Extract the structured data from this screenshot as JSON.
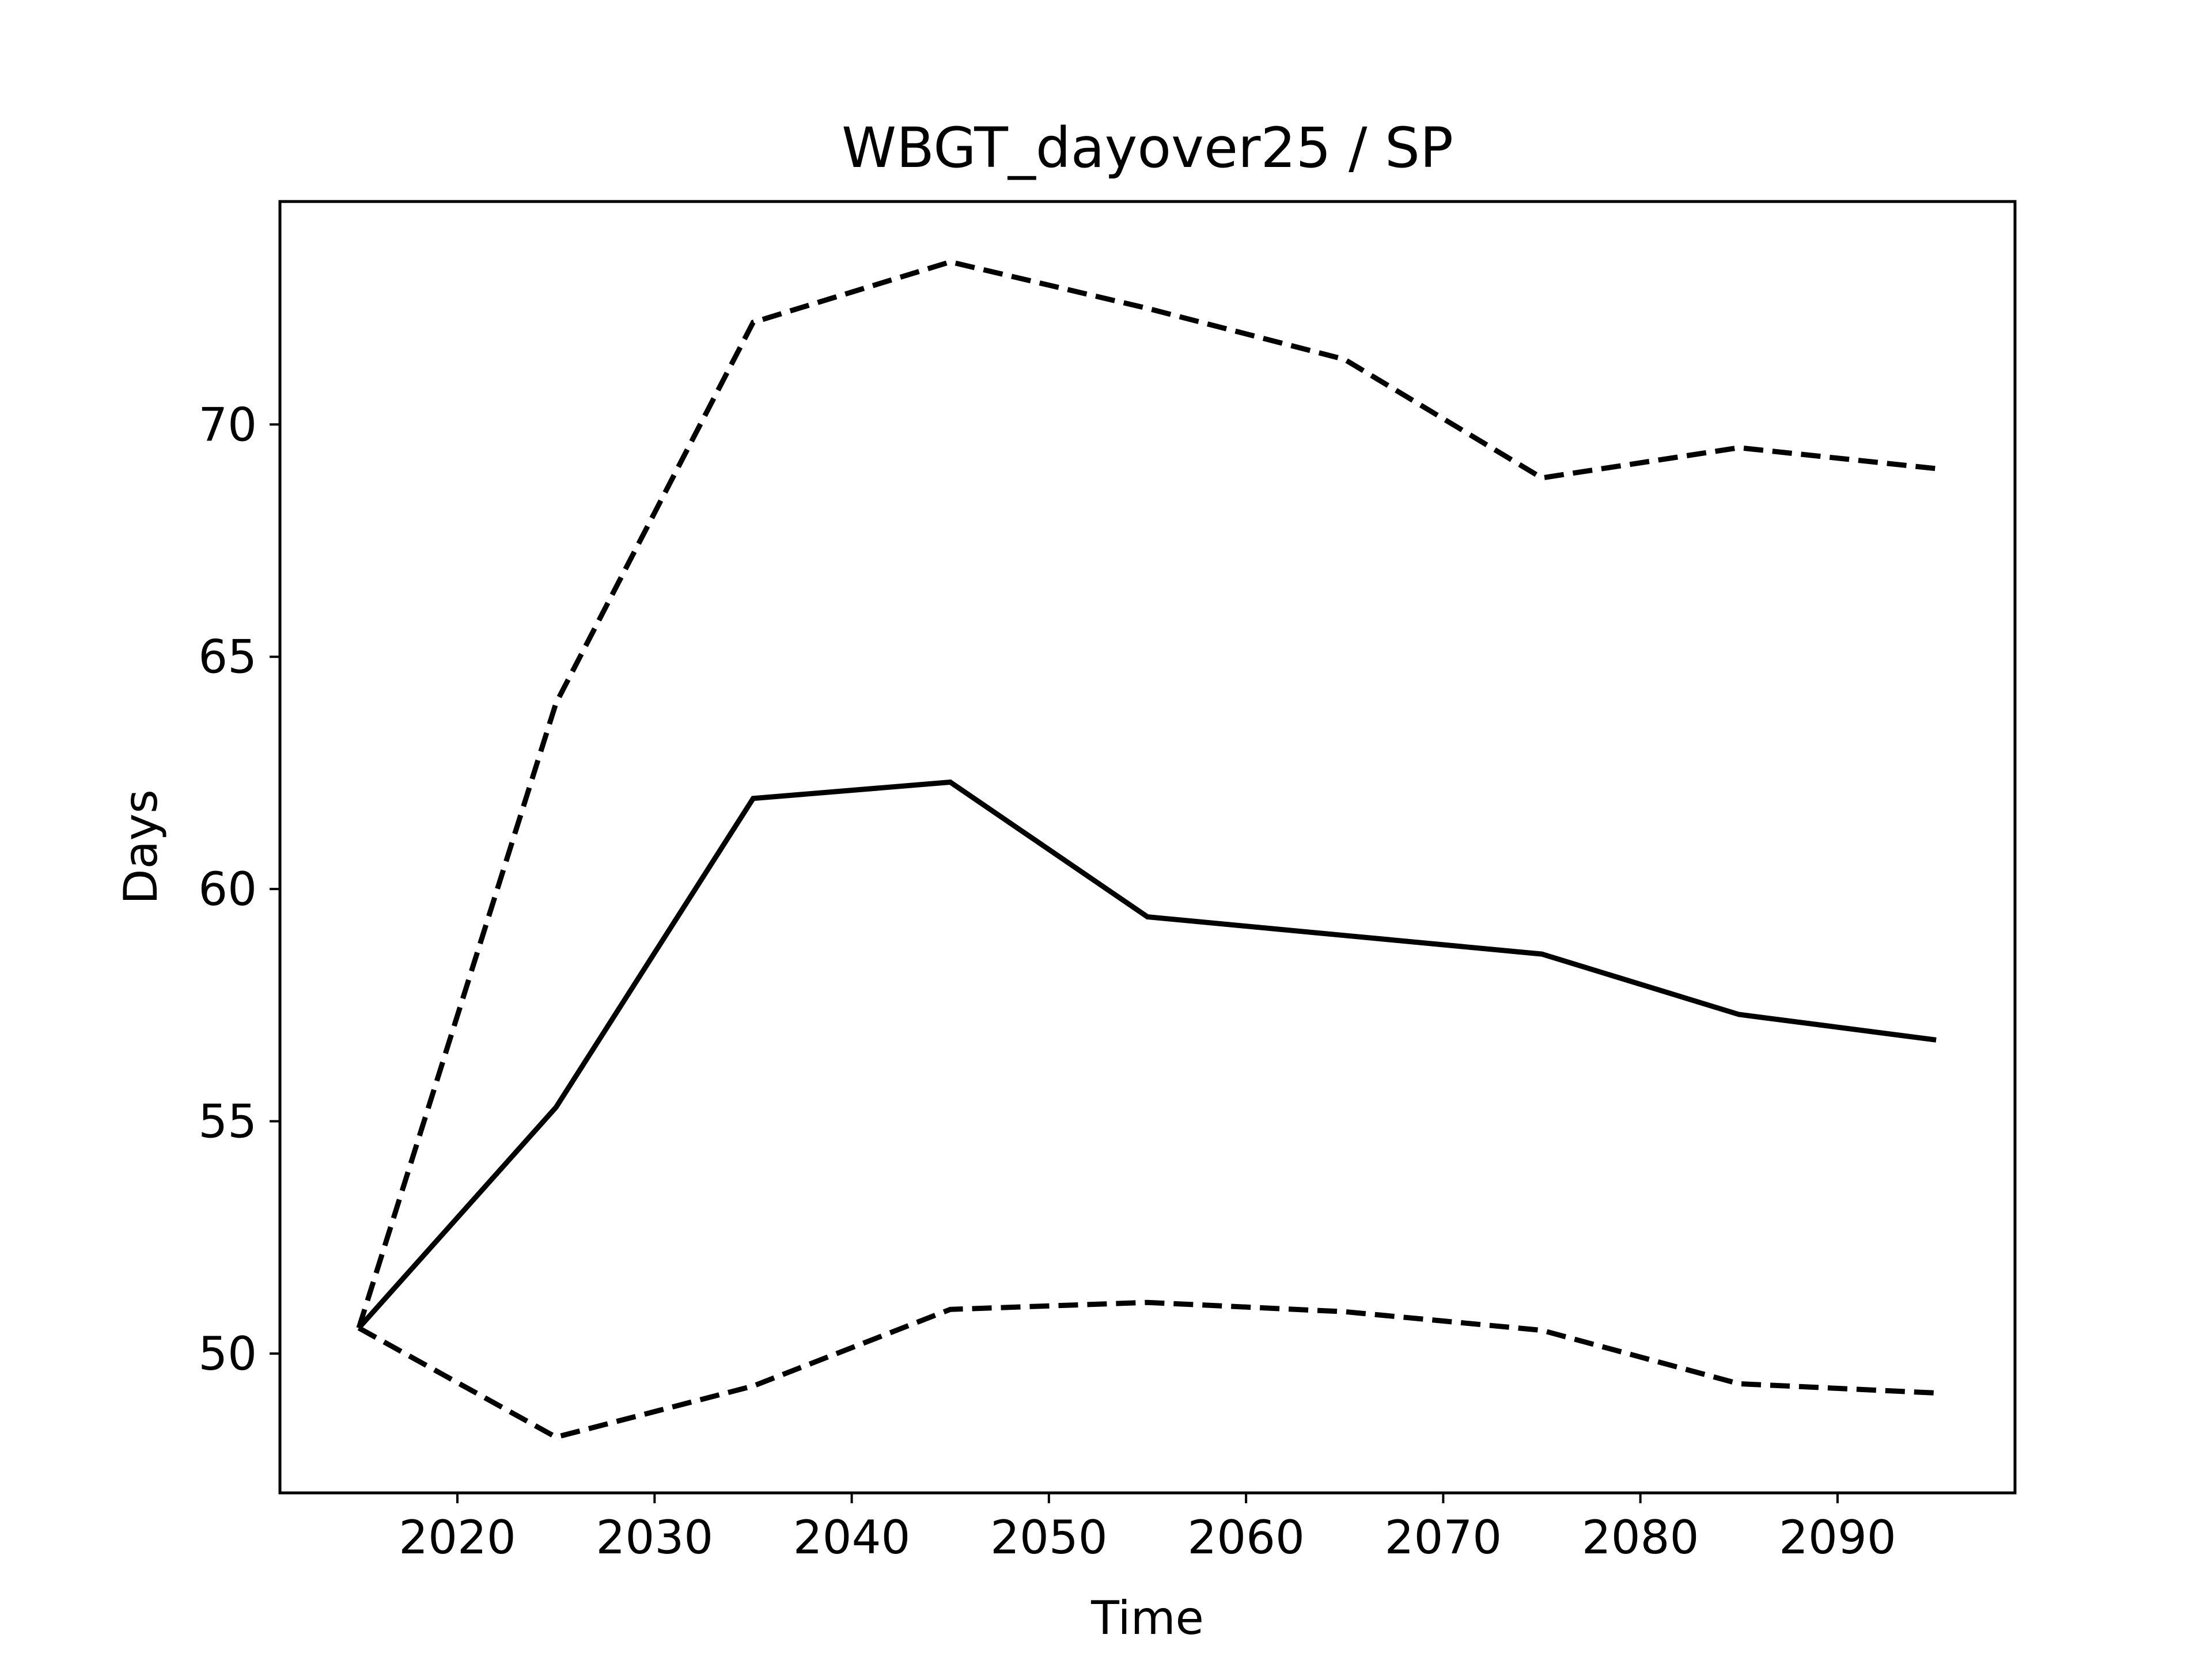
{
  "chart_data": {
    "type": "line",
    "title": "WBGT_dayover25 / SP",
    "xlabel": "Time",
    "ylabel": "Days",
    "xlim": [
      2011,
      2099
    ],
    "ylim": [
      47.0,
      74.8
    ],
    "xticks": [
      2020,
      2030,
      2040,
      2050,
      2060,
      2070,
      2080,
      2090
    ],
    "yticks": [
      50,
      55,
      60,
      65,
      70
    ],
    "grid": false,
    "legend": "none",
    "x": [
      2015,
      2025,
      2035,
      2045,
      2055,
      2065,
      2075,
      2085,
      2095
    ],
    "series": [
      {
        "style": "dashed",
        "color": "#000000",
        "values": [
          50.55,
          64.0,
          72.2,
          73.5,
          72.5,
          71.4,
          68.85,
          69.5,
          69.05
        ]
      },
      {
        "style": "solid",
        "color": "#000000",
        "values": [
          50.55,
          55.3,
          61.95,
          62.3,
          59.4,
          59.0,
          58.6,
          57.3,
          56.75
        ]
      },
      {
        "style": "dashed",
        "color": "#000000",
        "values": [
          50.55,
          48.2,
          49.3,
          50.95,
          51.1,
          50.9,
          50.5,
          49.35,
          49.15
        ]
      }
    ]
  }
}
